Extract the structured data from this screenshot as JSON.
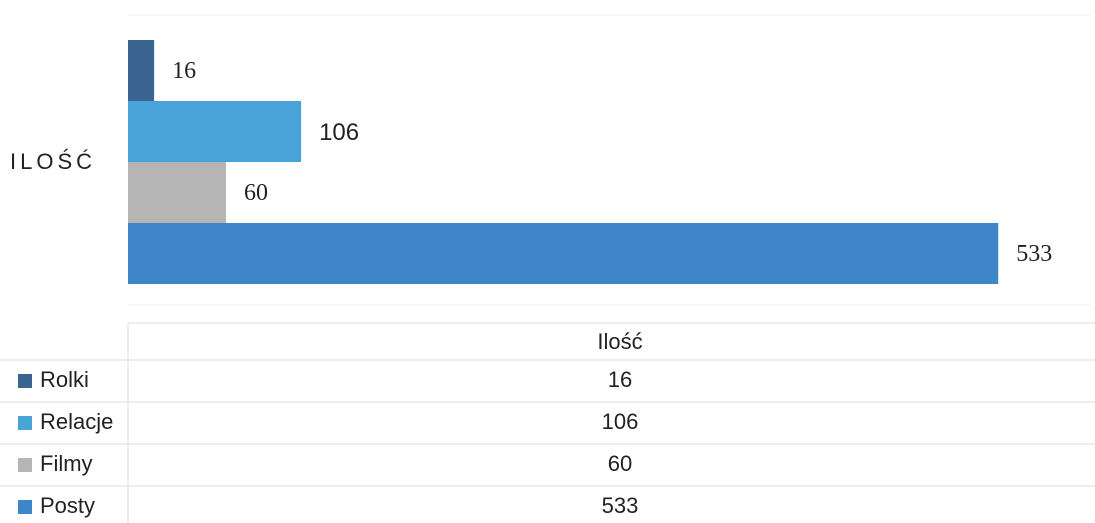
{
  "chart_data": {
    "type": "bar",
    "orientation": "horizontal",
    "categories": [
      "ILOŚĆ"
    ],
    "series": [
      {
        "name": "Rolki",
        "color": "#3a6590",
        "values": [
          16
        ]
      },
      {
        "name": "Relacje",
        "color": "#4aa3d8",
        "values": [
          106
        ]
      },
      {
        "name": "Filmy",
        "color": "#b5b5b5",
        "values": [
          60
        ]
      },
      {
        "name": "Posty",
        "color": "#3f86c8",
        "values": [
          533
        ]
      }
    ],
    "xlim": [
      0,
      550
    ],
    "table_header": "Ilość"
  }
}
